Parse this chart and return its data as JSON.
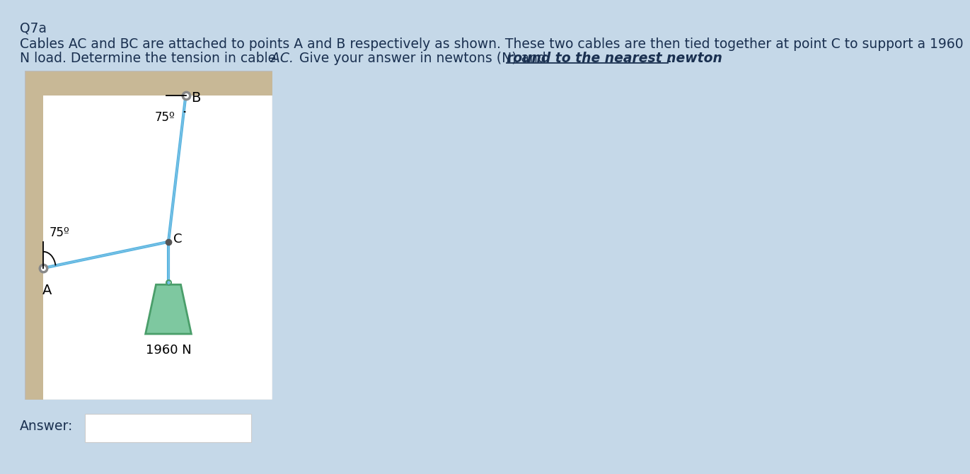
{
  "title": "Q7a",
  "background_color": "#c5d8e8",
  "text_color": "#1a3050",
  "question_line1": "Cables AC and BC are attached to points A and B respectively as shown. These two cables are then tied together at point C to support a 1960",
  "answer_label": "Answer:",
  "diagram_bg": "#f7f2e8",
  "wall_color": "#c8b896",
  "cable_color": "#5ab4e0",
  "weight_fill": "#7ec8a0",
  "weight_edge": "#4a9e6a",
  "load_label": "1960 N",
  "point_A_label": "A",
  "point_B_label": "B",
  "point_C_label": "C",
  "angle_label": "75º",
  "pin_color": "#888888",
  "pin_color_dark": "#555555"
}
